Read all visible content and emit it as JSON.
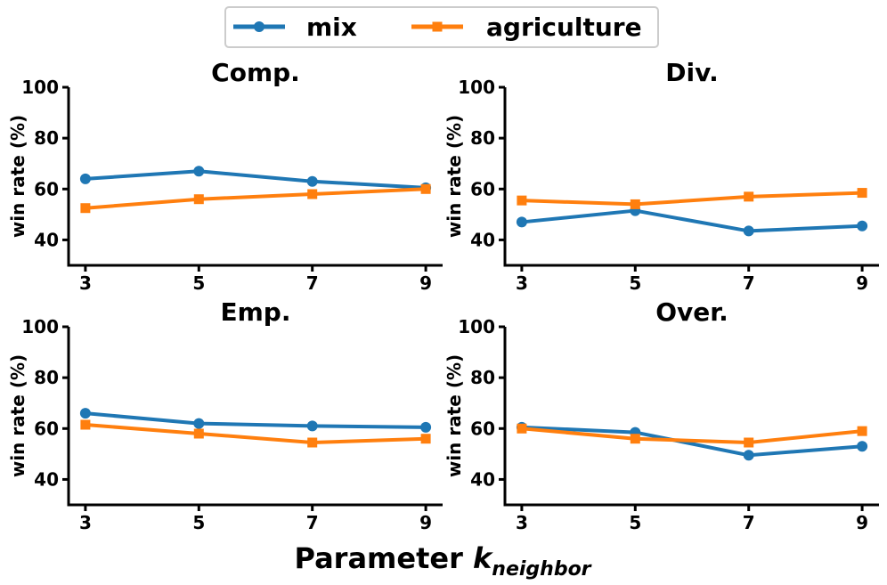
{
  "legend": {
    "placement": "top-center",
    "entries": [
      {
        "label": "mix",
        "color": "#1f77b4",
        "marker": "circle"
      },
      {
        "label": "agriculture",
        "color": "#ff7f0e",
        "marker": "square"
      }
    ]
  },
  "xlabel": {
    "main": "Parameter ",
    "italic": "k",
    "subscript": "neighbor"
  },
  "chart_data": [
    {
      "type": "line",
      "title": "Comp.",
      "ylabel": "win rate (%)",
      "x": [
        3,
        5,
        7,
        9
      ],
      "xticks": [
        "3",
        "5",
        "7",
        "9"
      ],
      "ylim": [
        30,
        100
      ],
      "yticks": [
        40,
        60,
        80,
        100
      ],
      "series": [
        {
          "name": "mix",
          "values": [
            64,
            67,
            63,
            60.5
          ]
        },
        {
          "name": "agriculture",
          "values": [
            52.5,
            56,
            58,
            60
          ]
        }
      ]
    },
    {
      "type": "line",
      "title": "Div.",
      "ylabel": "win rate (%)",
      "x": [
        3,
        5,
        7,
        9
      ],
      "xticks": [
        "3",
        "5",
        "7",
        "9"
      ],
      "ylim": [
        30,
        100
      ],
      "yticks": [
        40,
        60,
        80,
        100
      ],
      "series": [
        {
          "name": "mix",
          "values": [
            47,
            51.5,
            43.5,
            45.5
          ]
        },
        {
          "name": "agriculture",
          "values": [
            55.5,
            54,
            57,
            58.5
          ]
        }
      ]
    },
    {
      "type": "line",
      "title": "Emp.",
      "ylabel": "win rate (%)",
      "x": [
        3,
        5,
        7,
        9
      ],
      "xticks": [
        "3",
        "5",
        "7",
        "9"
      ],
      "ylim": [
        30,
        100
      ],
      "yticks": [
        40,
        60,
        80,
        100
      ],
      "series": [
        {
          "name": "mix",
          "values": [
            66,
            62,
            61,
            60.5
          ]
        },
        {
          "name": "agriculture",
          "values": [
            61.5,
            58,
            54.5,
            56
          ]
        }
      ]
    },
    {
      "type": "line",
      "title": "Over.",
      "ylabel": "win rate (%)",
      "x": [
        3,
        5,
        7,
        9
      ],
      "xticks": [
        "3",
        "5",
        "7",
        "9"
      ],
      "ylim": [
        30,
        100
      ],
      "yticks": [
        40,
        60,
        80,
        100
      ],
      "series": [
        {
          "name": "mix",
          "values": [
            60.5,
            58.5,
            49.5,
            53
          ]
        },
        {
          "name": "agriculture",
          "values": [
            60,
            56,
            54.5,
            59
          ]
        }
      ]
    }
  ]
}
